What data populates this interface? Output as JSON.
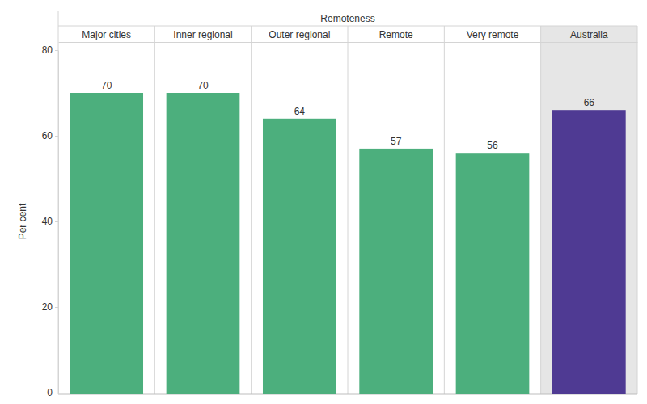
{
  "chart_data": {
    "type": "bar",
    "x_label": "Remoteness",
    "y_label": "Per cent",
    "categories": [
      "Major cities",
      "Inner regional",
      "Outer regional",
      "Remote",
      "Very remote",
      "Australia"
    ],
    "values": [
      70,
      70,
      64,
      57,
      56,
      66
    ],
    "colors": [
      "#4caf7d",
      "#4caf7d",
      "#4caf7d",
      "#4caf7d",
      "#4caf7d",
      "#4f3a93"
    ],
    "ylim": [
      0,
      80
    ],
    "yticks": [
      0,
      20,
      40,
      60,
      80
    ],
    "grid": false,
    "data_labels": true
  }
}
